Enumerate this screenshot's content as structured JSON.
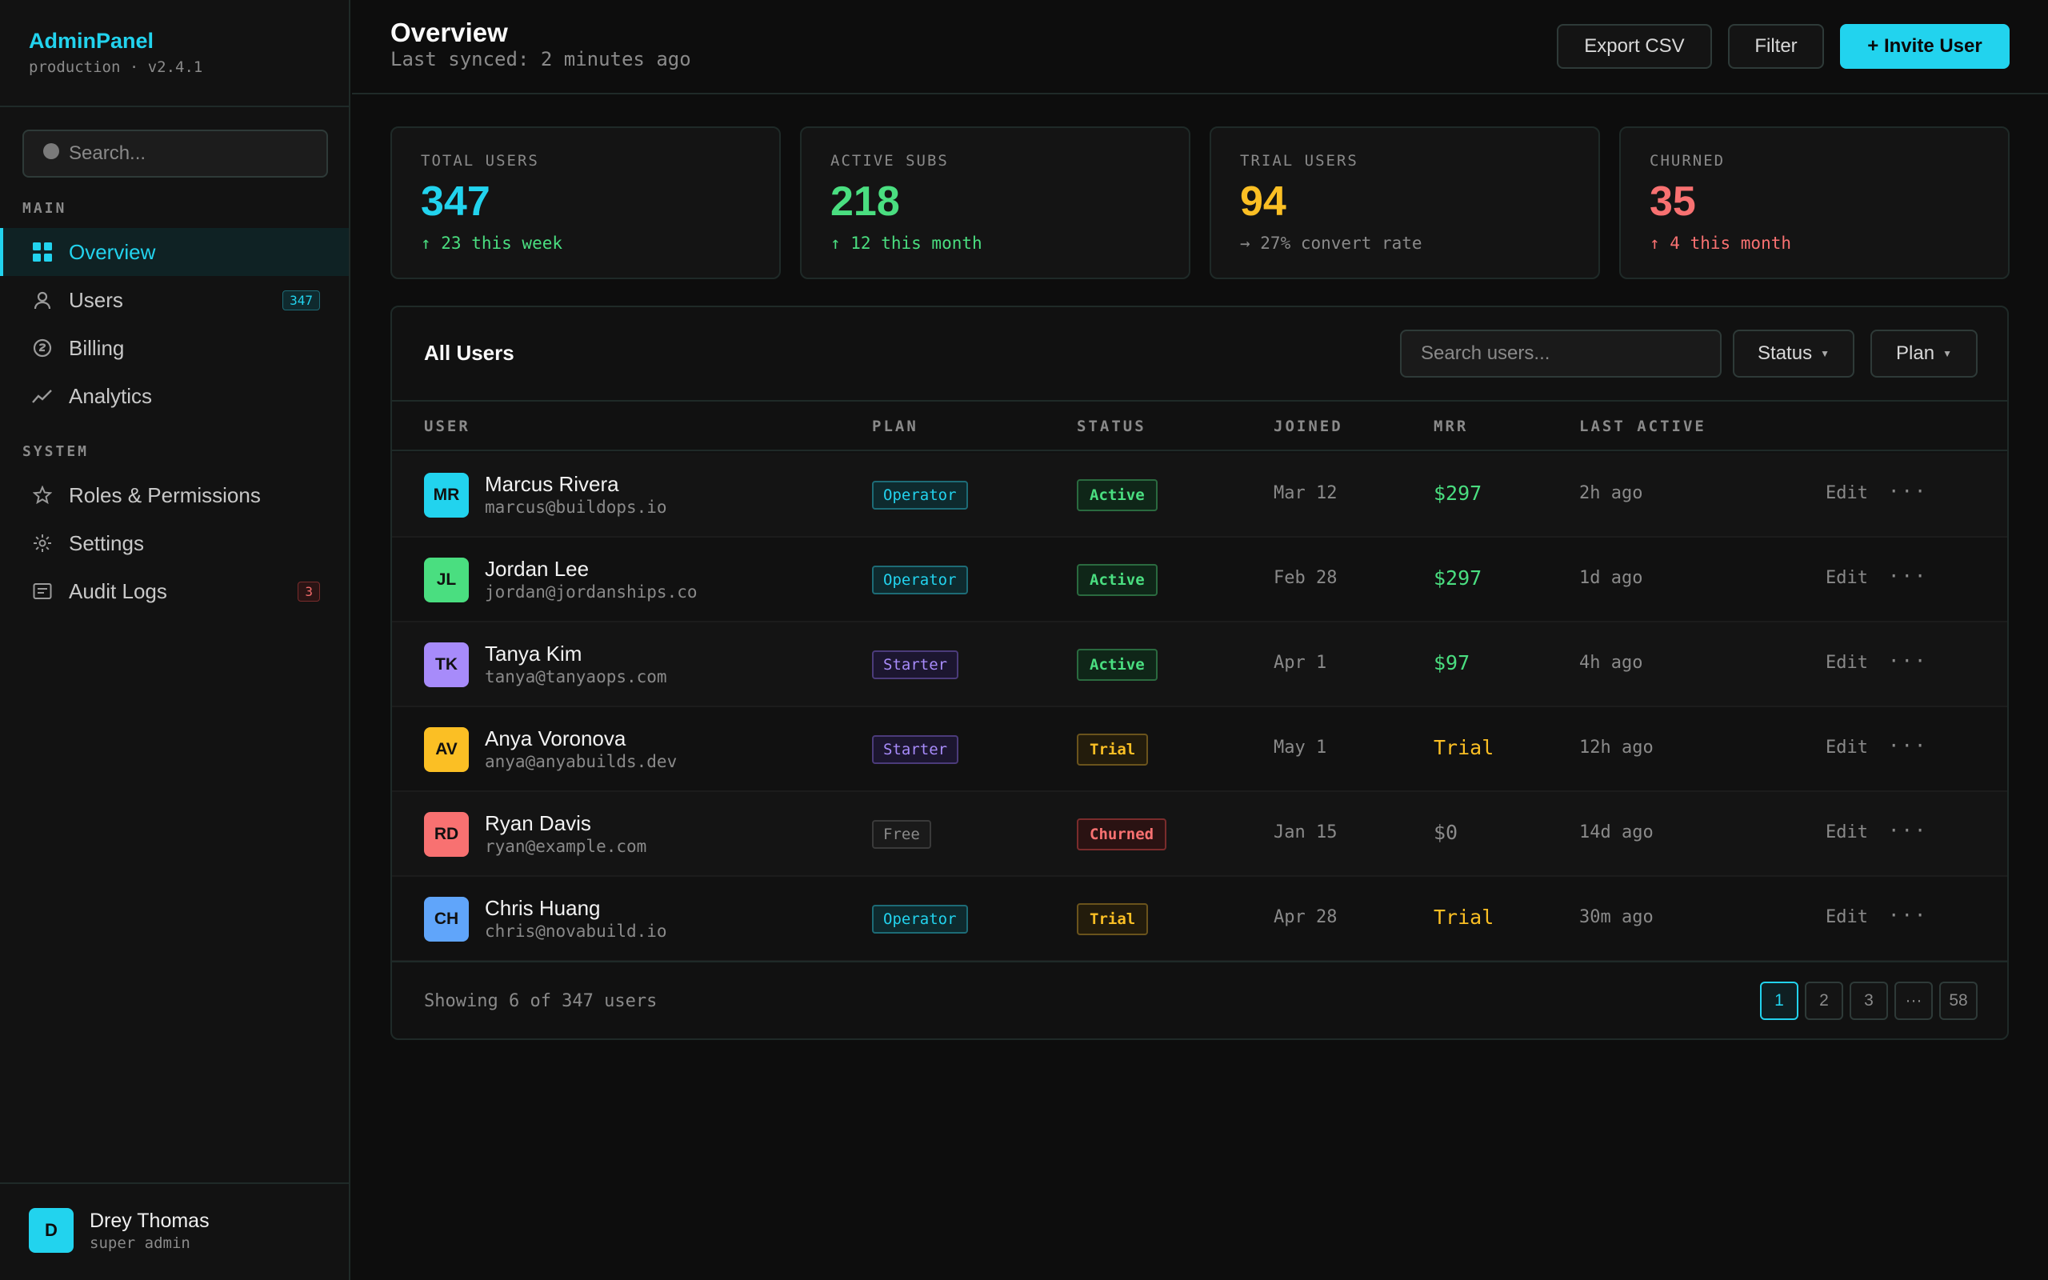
{
  "brand": {
    "name": "AdminPanel",
    "sub": "production · v2.4.1"
  },
  "sidebar": {
    "search_placeholder": "Search...",
    "section_main": "MAIN",
    "section_system": "SYSTEM",
    "items": [
      {
        "label": "Overview",
        "icon": "grid-icon",
        "active": true
      },
      {
        "label": "Users",
        "icon": "user-icon",
        "badge": "347"
      },
      {
        "label": "Billing",
        "icon": "billing-icon"
      },
      {
        "label": "Analytics",
        "icon": "chart-line-icon"
      },
      {
        "label": "Roles & Permissions",
        "icon": "star-icon"
      },
      {
        "label": "Settings",
        "icon": "gear-icon"
      },
      {
        "label": "Audit Logs",
        "icon": "log-icon",
        "badge": "3"
      }
    ],
    "user": {
      "initial": "D",
      "name": "Drey Thomas",
      "role": "super admin"
    }
  },
  "header": {
    "title": "Overview",
    "subtitle": "Last synced: 2 minutes ago",
    "export_label": "Export CSV",
    "filter_label": "Filter",
    "invite_label": "+ Invite User"
  },
  "stats": [
    {
      "label": "TOTAL USERS",
      "value": "347",
      "delta": "↑ 23 this week",
      "color": "#22d3ee",
      "delta_color": "#4ade80"
    },
    {
      "label": "ACTIVE SUBS",
      "value": "218",
      "delta": "↑ 12 this month",
      "color": "#4ade80",
      "delta_color": "#4ade80"
    },
    {
      "label": "TRIAL USERS",
      "value": "94",
      "delta": "→ 27% convert rate",
      "color": "#fbbf24",
      "delta_color": "#8a8a8a"
    },
    {
      "label": "CHURNED",
      "value": "35",
      "delta": "↑ 4 this month",
      "color": "#f87171",
      "delta_color": "#f87171"
    }
  ],
  "table": {
    "title": "All Users",
    "search_placeholder": "Search users...",
    "status_filter": "Status",
    "plan_filter": "Plan",
    "columns": [
      "USER",
      "PLAN",
      "STATUS",
      "JOINED",
      "MRR",
      "LAST ACTIVE"
    ],
    "edit_label": "Edit",
    "more_label": "···",
    "rows": [
      {
        "initials": "MR",
        "avatar_color": "#22d3ee",
        "name": "Marcus Rivera",
        "email": "marcus@buildops.io",
        "plan": "Operator",
        "status": "Active",
        "joined": "Mar 12",
        "mrr": "$297",
        "mrr_color": "#4ade80",
        "last_active": "2h ago"
      },
      {
        "initials": "JL",
        "avatar_color": "#4ade80",
        "name": "Jordan Lee",
        "email": "jordan@jordanships.co",
        "plan": "Operator",
        "status": "Active",
        "joined": "Feb 28",
        "mrr": "$297",
        "mrr_color": "#4ade80",
        "last_active": "1d ago"
      },
      {
        "initials": "TK",
        "avatar_color": "#a78bfa",
        "name": "Tanya Kim",
        "email": "tanya@tanyaops.com",
        "plan": "Starter",
        "status": "Active",
        "joined": "Apr 1",
        "mrr": "$97",
        "mrr_color": "#4ade80",
        "last_active": "4h ago"
      },
      {
        "initials": "AV",
        "avatar_color": "#fbbf24",
        "name": "Anya Voronova",
        "email": "anya@anyabuilds.dev",
        "plan": "Starter",
        "status": "Trial",
        "joined": "May 1",
        "mrr": "Trial",
        "mrr_color": "#fbbf24",
        "last_active": "12h ago"
      },
      {
        "initials": "RD",
        "avatar_color": "#f87171",
        "name": "Ryan Davis",
        "email": "ryan@example.com",
        "plan": "Free",
        "status": "Churned",
        "joined": "Jan 15",
        "mrr": "$0",
        "mrr_color": "#8a8a8a",
        "last_active": "14d ago"
      },
      {
        "initials": "CH",
        "avatar_color": "#60a5fa",
        "name": "Chris Huang",
        "email": "chris@novabuild.io",
        "plan": "Operator",
        "status": "Trial",
        "joined": "Apr 28",
        "mrr": "Trial",
        "mrr_color": "#fbbf24",
        "last_active": "30m ago"
      }
    ],
    "footer_text": "Showing 6 of 347 users",
    "pages": [
      "1",
      "2",
      "3",
      "···",
      "58"
    ],
    "current_page": "1"
  }
}
